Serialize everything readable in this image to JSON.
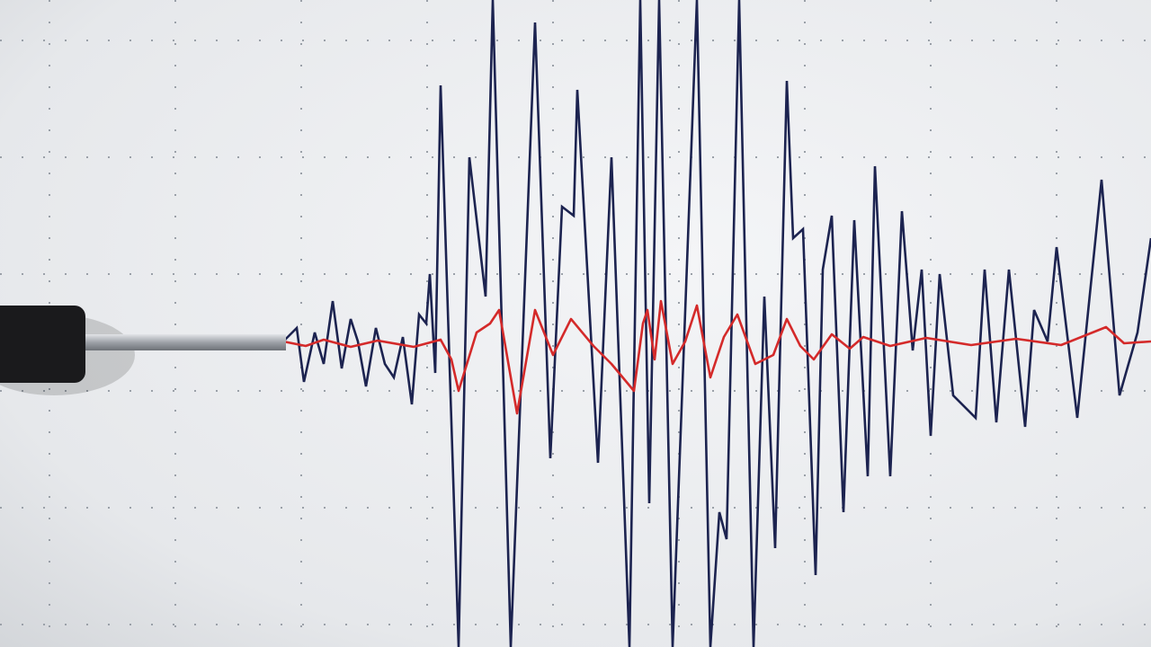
{
  "colors": {
    "paper": "#eef0f2",
    "grid": "#9aa0a8",
    "trace_primary": "#1c2350",
    "trace_secondary": "#d42a2a",
    "stylus_body": "#1a1a1c",
    "stylus_rod": "#b8bcc2"
  }
}
